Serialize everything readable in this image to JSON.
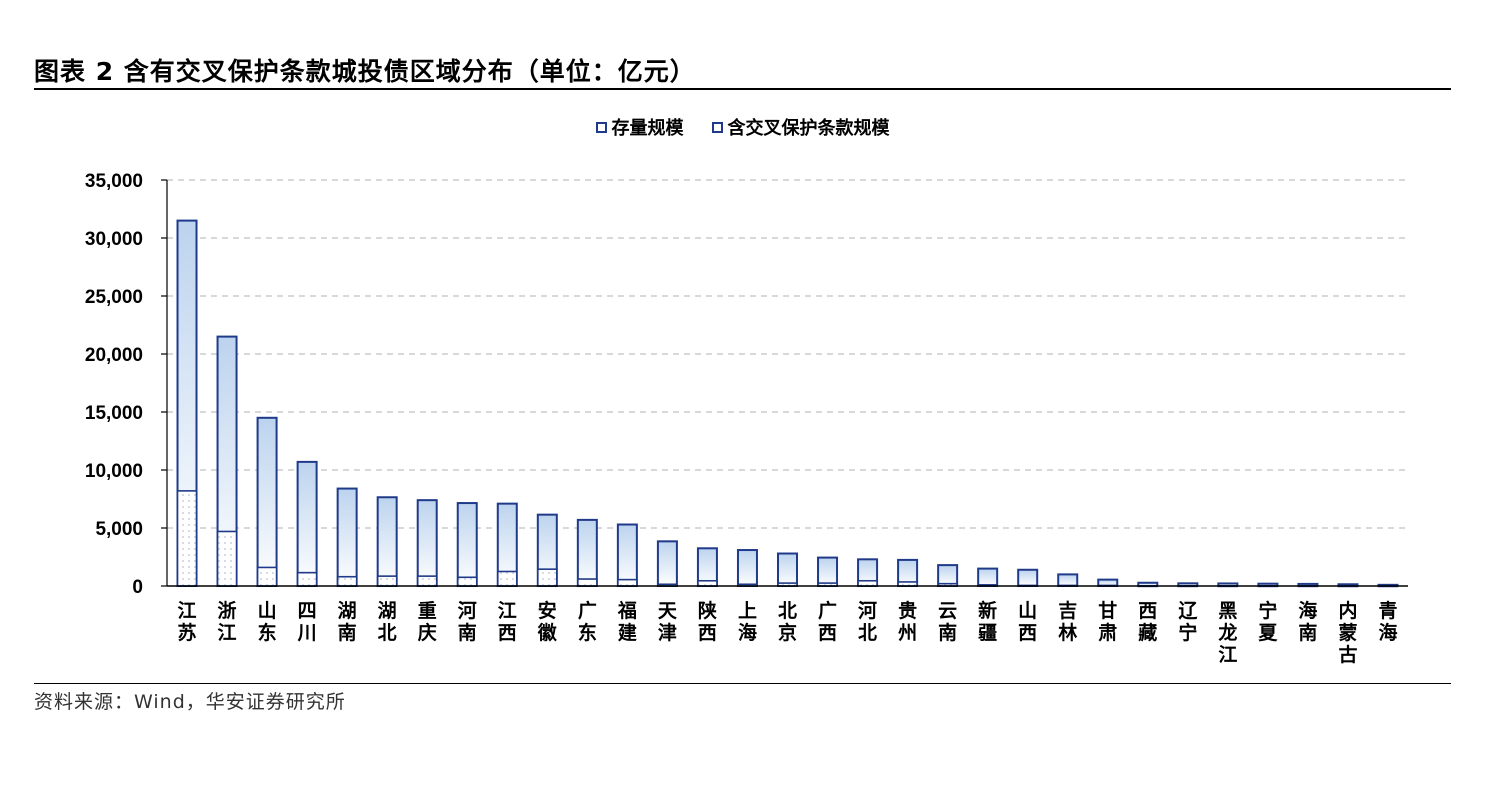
{
  "title": "图表 2 含有交叉保护条款城投债区域分布（单位：亿元）",
  "source": "资料来源：Wind，华安证券研究所",
  "colors": {
    "outline": "#1f3a8a",
    "grid": "#cccccc",
    "gradient_top": "#bcd3ee"
  },
  "chart_data": {
    "type": "bar",
    "title": "",
    "xlabel": "",
    "ylabel": "",
    "ylim": [
      0,
      35000
    ],
    "yticks": [
      0,
      5000,
      10000,
      15000,
      20000,
      25000,
      30000,
      35000
    ],
    "ytick_labels": [
      "0",
      "5,000",
      "10,000",
      "15,000",
      "20,000",
      "25,000",
      "30,000",
      "35,000"
    ],
    "grid": true,
    "legend_position": "top-center",
    "categories": [
      "江苏",
      "浙江",
      "山东",
      "四川",
      "湖南",
      "湖北",
      "重庆",
      "河南",
      "江西",
      "安徽",
      "广东",
      "福建",
      "天津",
      "陕西",
      "上海",
      "北京",
      "广西",
      "河北",
      "贵州",
      "云南",
      "新疆",
      "山西",
      "吉林",
      "甘肃",
      "西藏",
      "辽宁",
      "黑龙江",
      "宁夏",
      "海南",
      "内蒙古",
      "青海"
    ],
    "series": [
      {
        "name": "存量规模",
        "values": [
          31500,
          21500,
          14500,
          10700,
          8400,
          7650,
          7400,
          7150,
          7100,
          6150,
          5700,
          5300,
          3850,
          3250,
          3100,
          2800,
          2450,
          2300,
          2250,
          1800,
          1500,
          1400,
          1000,
          550,
          280,
          230,
          220,
          200,
          180,
          150,
          100
        ]
      },
      {
        "name": "含交叉保护条款规模",
        "values": [
          8200,
          4700,
          1600,
          1150,
          800,
          850,
          850,
          750,
          1250,
          1450,
          600,
          550,
          150,
          450,
          150,
          250,
          250,
          450,
          350,
          200,
          100,
          50,
          50,
          50,
          10,
          10,
          10,
          10,
          10,
          5,
          5
        ]
      }
    ]
  }
}
